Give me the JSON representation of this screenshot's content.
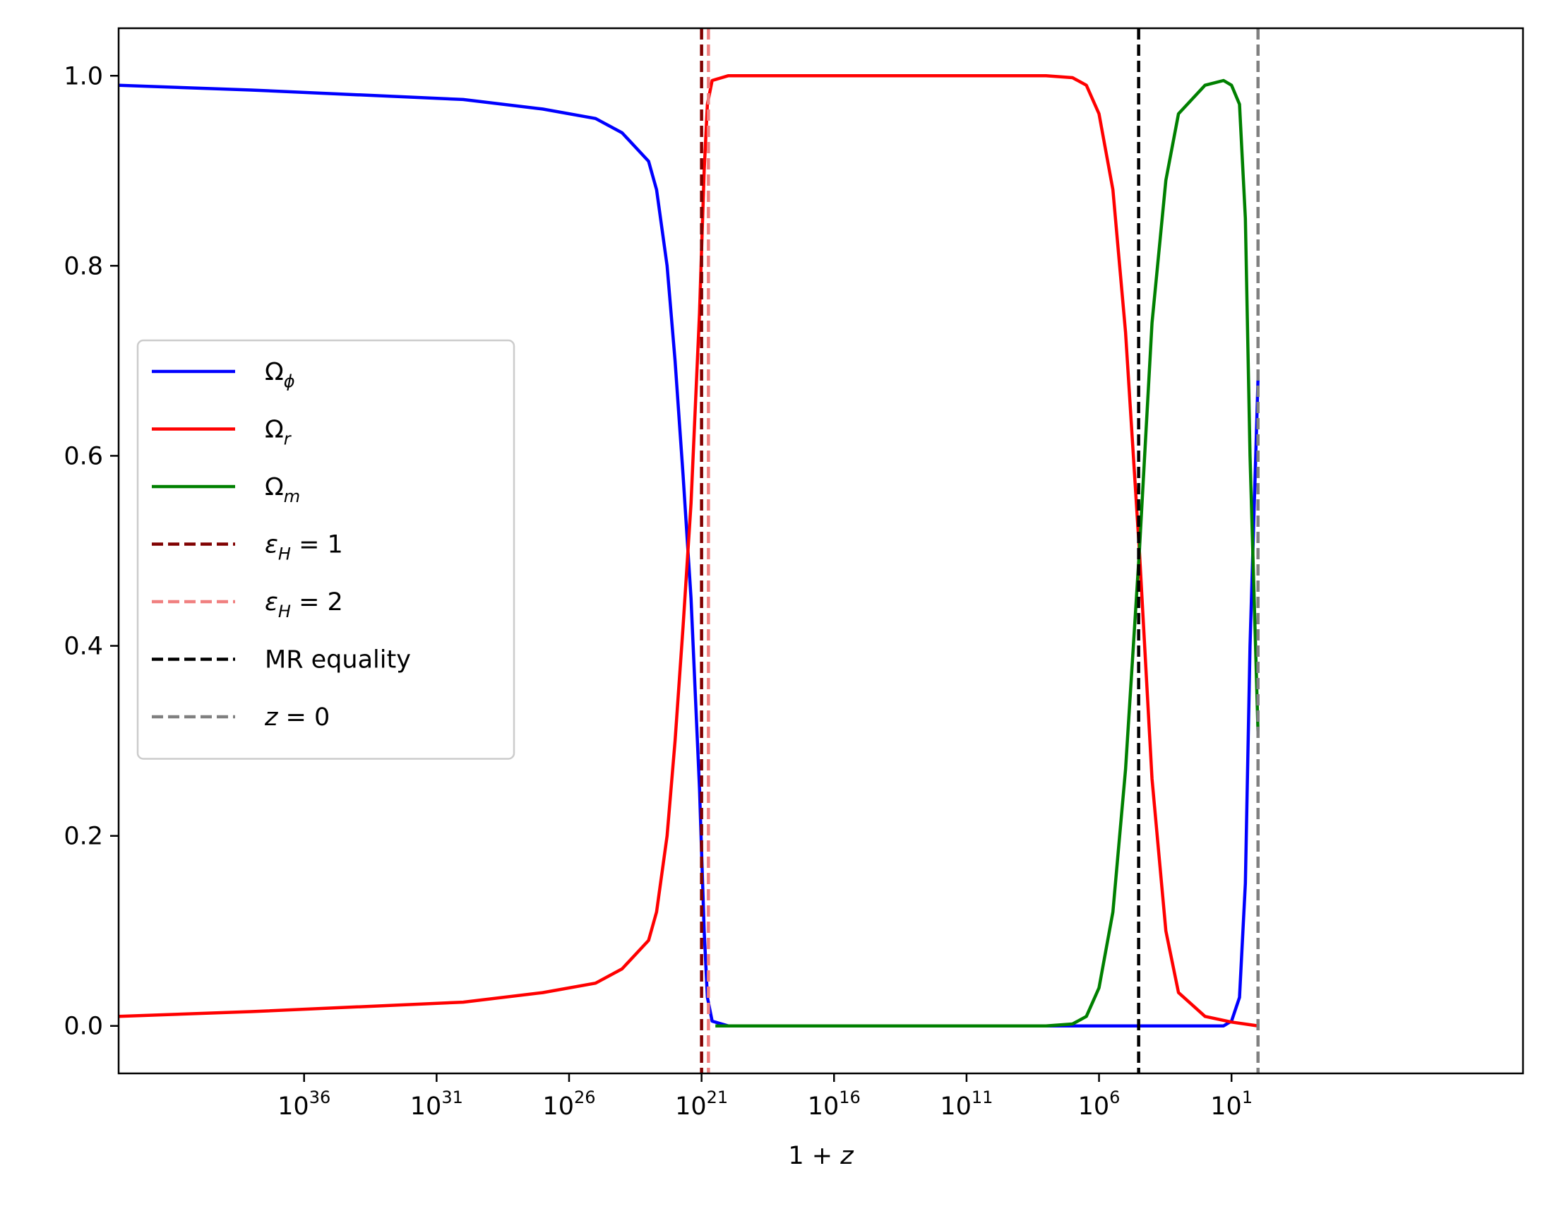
{
  "chart_data": {
    "type": "line",
    "xlabel": "1 + z",
    "x_scale": "log-reversed",
    "xlim": [
      1e+43,
      1e-10
    ],
    "ylim": [
      -0.05,
      1.05
    ],
    "grid": false,
    "legend_position": "center-left",
    "y_ticks": [
      "0.0",
      "0.2",
      "0.4",
      "0.6",
      "0.8",
      "1.0"
    ],
    "x_ticks": [
      {
        "base": "10",
        "exp": "36",
        "value": 1e+36
      },
      {
        "base": "10",
        "exp": "31",
        "value": 1e+31
      },
      {
        "base": "10",
        "exp": "26",
        "value": 1e+26
      },
      {
        "base": "10",
        "exp": "21",
        "value": 1e+21
      },
      {
        "base": "10",
        "exp": "16",
        "value": 1e+16
      },
      {
        "base": "10",
        "exp": "11",
        "value": 100000000000.0
      },
      {
        "base": "10",
        "exp": "6",
        "value": 1000000.0
      },
      {
        "base": "10",
        "exp": "1",
        "value": 10
      }
    ],
    "series": [
      {
        "name": "Ω_φ",
        "label_main": "Ω",
        "label_sub": "ϕ",
        "color": "#0000ff",
        "style": "solid",
        "points": [
          [
            1e+43,
            0.99
          ],
          [
            1e+38,
            0.985
          ],
          [
            1e+34,
            0.98
          ],
          [
            1e+30,
            0.975
          ],
          [
            1e+27,
            0.965
          ],
          [
            1e+25,
            0.955
          ],
          [
            1e+24,
            0.94
          ],
          [
            1e+23,
            0.91
          ],
          [
            5e+22,
            0.88
          ],
          [
            2e+22,
            0.8
          ],
          [
            1e+22,
            0.7
          ],
          [
            5e+21,
            0.58
          ],
          [
            2.5e+21,
            0.45
          ],
          [
            1.2e+21,
            0.25
          ],
          [
            8e+20,
            0.1
          ],
          [
            6e+20,
            0.03
          ],
          [
            4e+20,
            0.005
          ],
          [
            1e+20,
            0.0
          ],
          [
            10000000000.0,
            0.0
          ],
          [
            100,
            0.0
          ],
          [
            20,
            0.0
          ],
          [
            10,
            0.005
          ],
          [
            5,
            0.03
          ],
          [
            3,
            0.15
          ],
          [
            2,
            0.4
          ],
          [
            1,
            0.68
          ]
        ]
      },
      {
        "name": "Ω_r",
        "label_main": "Ω",
        "label_sub": "r",
        "color": "#ff0000",
        "style": "solid",
        "points": [
          [
            1e+43,
            0.01
          ],
          [
            1e+38,
            0.015
          ],
          [
            1e+34,
            0.02
          ],
          [
            1e+30,
            0.025
          ],
          [
            1e+27,
            0.035
          ],
          [
            1e+25,
            0.045
          ],
          [
            1e+24,
            0.06
          ],
          [
            1e+23,
            0.09
          ],
          [
            5e+22,
            0.12
          ],
          [
            2e+22,
            0.2
          ],
          [
            1e+22,
            0.3
          ],
          [
            5e+21,
            0.42
          ],
          [
            2.5e+21,
            0.55
          ],
          [
            1.2e+21,
            0.75
          ],
          [
            8e+20,
            0.9
          ],
          [
            6e+20,
            0.97
          ],
          [
            4e+20,
            0.995
          ],
          [
            1e+20,
            1.0
          ],
          [
            100000000.0,
            1.0
          ],
          [
            10000000.0,
            0.998
          ],
          [
            3000000.0,
            0.99
          ],
          [
            1000000.0,
            0.96
          ],
          [
            300000.0,
            0.88
          ],
          [
            100000.0,
            0.73
          ],
          [
            30000.0,
            0.5
          ],
          [
            10000.0,
            0.26
          ],
          [
            3000.0,
            0.1
          ],
          [
            1000.0,
            0.035
          ],
          [
            100,
            0.01
          ],
          [
            10,
            0.004
          ],
          [
            1,
            0.0
          ]
        ]
      },
      {
        "name": "Ω_m",
        "label_main": "Ω",
        "label_sub": "m",
        "color": "#008000",
        "style": "solid",
        "points": [
          [
            3e+20,
            0.0
          ],
          [
            1000000000000000.0,
            0.0
          ],
          [
            100000000.0,
            0.0
          ],
          [
            10000000.0,
            0.002
          ],
          [
            3000000.0,
            0.01
          ],
          [
            1000000.0,
            0.04
          ],
          [
            300000.0,
            0.12
          ],
          [
            100000.0,
            0.27
          ],
          [
            30000.0,
            0.5
          ],
          [
            10000.0,
            0.74
          ],
          [
            3000.0,
            0.89
          ],
          [
            1000.0,
            0.96
          ],
          [
            100,
            0.99
          ],
          [
            20,
            0.995
          ],
          [
            10,
            0.99
          ],
          [
            5,
            0.97
          ],
          [
            3,
            0.85
          ],
          [
            2,
            0.6
          ],
          [
            1,
            0.31
          ]
        ]
      }
    ],
    "vlines": [
      {
        "name": "ε_H = 1",
        "label_main": "ε",
        "label_sub": "H",
        "label_rest": " = 1",
        "x": 1e+21,
        "color": "#800000",
        "style": "dashed"
      },
      {
        "name": "ε_H = 2",
        "label_main": "ε",
        "label_sub": "H",
        "label_rest": " = 2",
        "x": 5.5e+20,
        "color": "#f08080",
        "style": "dashed"
      },
      {
        "name": "MR equality",
        "label_main": "MR equality",
        "label_sub": "",
        "label_rest": "",
        "x": 32000.0,
        "color": "#000000",
        "style": "dashed"
      },
      {
        "name": "z = 0",
        "label_main": "z",
        "label_sub": "",
        "label_rest": " = 0",
        "x": 1,
        "color": "#808080",
        "style": "dashed"
      }
    ]
  }
}
